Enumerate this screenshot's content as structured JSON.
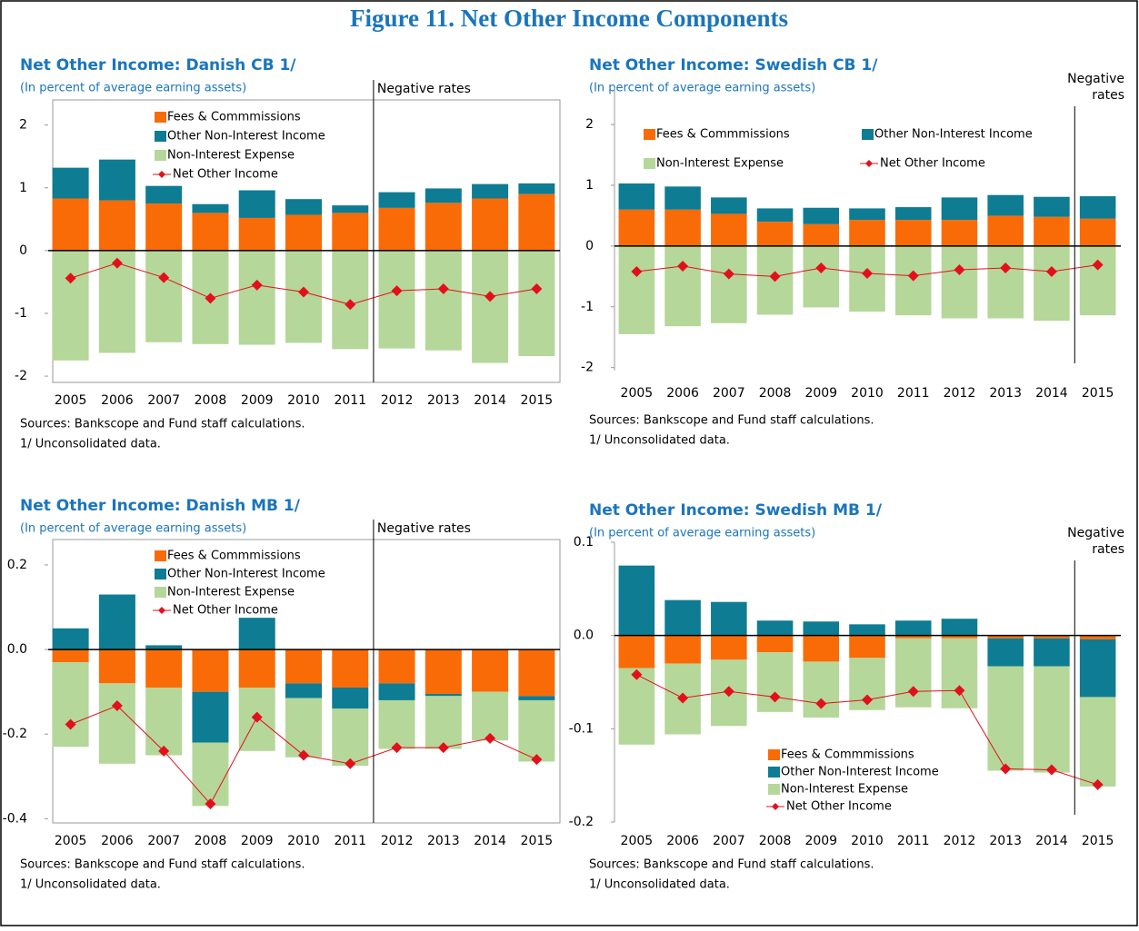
{
  "title": "Figure 11. Net Other Income Components",
  "chart_data": [
    {
      "type": "bar",
      "title": "Net Other Income: Danish CB 1/",
      "subtitle": "(In percent of average earning assets)",
      "categories": [
        "2005",
        "2006",
        "2007",
        "2008",
        "2009",
        "2010",
        "2011",
        "2012",
        "2013",
        "2014",
        "2015"
      ],
      "series": [
        {
          "name": "Fees & Commmissions",
          "color": "#f96b07",
          "values": [
            0.83,
            0.8,
            0.75,
            0.6,
            0.52,
            0.57,
            0.6,
            0.68,
            0.76,
            0.83,
            0.9
          ]
        },
        {
          "name": "Other Non-Interest Income",
          "color": "#0e7c93",
          "values": [
            0.49,
            0.65,
            0.28,
            0.14,
            0.44,
            0.25,
            0.12,
            0.25,
            0.23,
            0.23,
            0.17
          ]
        },
        {
          "name": "Non-Interest Expense",
          "color": "#b5d79a",
          "values": [
            -1.75,
            -1.63,
            -1.46,
            -1.49,
            -1.5,
            -1.47,
            -1.57,
            -1.56,
            -1.59,
            -1.79,
            -1.68
          ]
        },
        {
          "name": "Net Other Income",
          "type": "line",
          "color": "#e3101c",
          "values": [
            -0.44,
            -0.2,
            -0.43,
            -0.76,
            -0.55,
            -0.66,
            -0.86,
            -0.64,
            -0.61,
            -0.73,
            -0.61
          ]
        }
      ],
      "ylim": [
        -2.1,
        2.4
      ],
      "yticks": [
        -2,
        -1,
        0,
        1,
        2
      ],
      "frame": true,
      "annotation": {
        "text": [
          "Negative rates"
        ],
        "after": "2011"
      },
      "notes": [
        "Sources: Bankscope and Fund staff calculations.",
        "1/ Unconsolidated data."
      ]
    },
    {
      "type": "bar",
      "title": "Net Other Income: Swedish CB 1/",
      "subtitle": "(In percent of average earning assets)",
      "categories": [
        "2005",
        "2006",
        "2007",
        "2008",
        "2009",
        "2010",
        "2011",
        "2012",
        "2013",
        "2014",
        "2015"
      ],
      "series": [
        {
          "name": "Fees & Commmissions",
          "color": "#f96b07",
          "values": [
            0.6,
            0.6,
            0.53,
            0.4,
            0.36,
            0.43,
            0.43,
            0.43,
            0.5,
            0.48,
            0.45
          ]
        },
        {
          "name": "Other Non-Interest Income",
          "color": "#0e7c93",
          "values": [
            0.43,
            0.38,
            0.27,
            0.22,
            0.27,
            0.19,
            0.21,
            0.37,
            0.34,
            0.33,
            0.37
          ]
        },
        {
          "name": "Non-Interest Expense",
          "color": "#b5d79a",
          "values": [
            -1.45,
            -1.32,
            -1.27,
            -1.13,
            -1.01,
            -1.08,
            -1.14,
            -1.19,
            -1.19,
            -1.23,
            -1.14
          ]
        },
        {
          "name": "Net Other Income",
          "type": "line",
          "color": "#e3101c",
          "values": [
            -0.42,
            -0.33,
            -0.46,
            -0.5,
            -0.36,
            -0.45,
            -0.49,
            -0.39,
            -0.36,
            -0.42,
            -0.31
          ]
        }
      ],
      "ylim": [
        -2.05,
        2.6
      ],
      "yticks": [
        -2,
        -1,
        0,
        1,
        2
      ],
      "frame": false,
      "annotation": {
        "text": [
          "Negative",
          "rates"
        ],
        "after": "2014"
      },
      "notes": [
        "Sources: Bankscope and Fund staff calculations.",
        "1/ Unconsolidated data."
      ]
    },
    {
      "type": "bar",
      "title": "Net Other Income: Danish MB 1/",
      "subtitle": "(In percent of average earning assets)",
      "categories": [
        "2005",
        "2006",
        "2007",
        "2008",
        "2009",
        "2010",
        "2011",
        "2012",
        "2013",
        "2014",
        "2015"
      ],
      "series": [
        {
          "name": "Fees & Commmissions",
          "color": "#f96b07",
          "values": [
            -0.03,
            -0.08,
            -0.09,
            -0.1,
            -0.09,
            -0.08,
            -0.09,
            -0.08,
            -0.105,
            -0.1,
            -0.11
          ]
        },
        {
          "name": "Other Non-Interest Income",
          "color": "#0e7c93",
          "values": [
            0.05,
            0.13,
            0.01,
            -0.12,
            0.075,
            -0.035,
            -0.05,
            -0.04,
            -0.005,
            0,
            -0.01
          ]
        },
        {
          "name": "Non-Interest Expense",
          "color": "#b5d79a",
          "values": [
            -0.2,
            -0.19,
            -0.16,
            -0.15,
            -0.15,
            -0.14,
            -0.135,
            -0.115,
            -0.125,
            -0.115,
            -0.145
          ]
        },
        {
          "name": "Net Other Income",
          "type": "line",
          "color": "#e3101c",
          "values": [
            -0.177,
            -0.133,
            -0.24,
            -0.365,
            -0.16,
            -0.25,
            -0.27,
            -0.232,
            -0.232,
            -0.21,
            -0.26
          ]
        }
      ],
      "ylim": [
        -0.41,
        0.26
      ],
      "yticks": [
        {
          "value": -0.4,
          "label": "-0.4"
        },
        {
          "value": -0.2,
          "label": "-0.2"
        },
        {
          "value": 0,
          "label": "0.0"
        },
        {
          "value": 0.2,
          "label": "0.2"
        }
      ],
      "frame": true,
      "annotation": {
        "text": [
          "Negative rates"
        ],
        "after": "2011"
      },
      "notes": [
        "Sources: Bankscope and Fund staff calculations.",
        "1/ Unconsolidated data."
      ]
    },
    {
      "type": "bar",
      "title": "Net Other Income: Swedish MB 1/",
      "subtitle": "(In percent of average earning assets)",
      "categories": [
        "2005",
        "2006",
        "2007",
        "2008",
        "2009",
        "2010",
        "2011",
        "2012",
        "2013",
        "2014",
        "2015"
      ],
      "series": [
        {
          "name": "Fees & Commmissions",
          "color": "#f96b07",
          "values": [
            -0.035,
            -0.03,
            -0.026,
            -0.018,
            -0.028,
            -0.024,
            -0.003,
            -0.003,
            -0.003,
            -0.003,
            -0.004
          ]
        },
        {
          "name": "Other Non-Interest Income",
          "color": "#0e7c93",
          "values": [
            0.075,
            0.038,
            0.036,
            0.016,
            0.015,
            0.012,
            0.016,
            0.018,
            -0.03,
            -0.03,
            -0.062
          ]
        },
        {
          "name": "Non-Interest Expense",
          "color": "#b5d79a",
          "values": [
            -0.082,
            -0.076,
            -0.071,
            -0.064,
            -0.06,
            -0.056,
            -0.074,
            -0.075,
            -0.112,
            -0.114,
            -0.096
          ]
        },
        {
          "name": "Net Other Income",
          "type": "line",
          "color": "#e3101c",
          "values": [
            -0.042,
            -0.067,
            -0.06,
            -0.066,
            -0.073,
            -0.069,
            -0.06,
            -0.059,
            -0.143,
            -0.144,
            -0.16
          ]
        }
      ],
      "ylim": [
        -0.2,
        0.1
      ],
      "yticks": [
        {
          "value": -0.2,
          "label": "-0.2"
        },
        {
          "value": -0.1,
          "label": "-0.1"
        },
        {
          "value": 0,
          "label": "0.0"
        },
        0.1
      ],
      "frame": false,
      "annotation": {
        "text": [
          "Negative",
          "rates"
        ],
        "after": "2014"
      },
      "notes": [
        "Sources: Bankscope and Fund staff calculations.",
        "1/ Unconsolidated data."
      ]
    }
  ]
}
